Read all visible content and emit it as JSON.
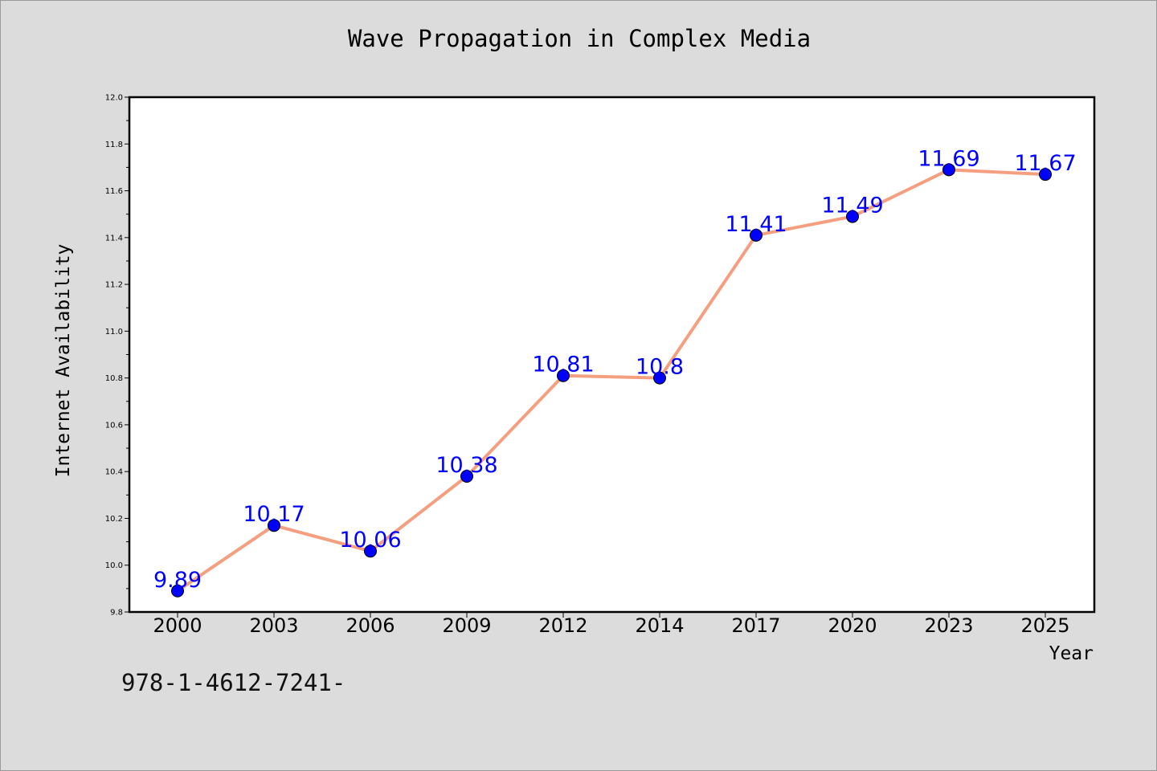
{
  "chart_data": {
    "type": "line",
    "title": "Wave Propagation in Complex Media",
    "xlabel": "Year",
    "ylabel": "Internet Availability",
    "categories": [
      "2000",
      "2003",
      "2006",
      "2009",
      "2012",
      "2014",
      "2017",
      "2020",
      "2023",
      "2025"
    ],
    "series": [
      {
        "values": [
          9.89,
          10.17,
          10.06,
          10.38,
          10.81,
          10.8,
          11.41,
          11.49,
          11.69,
          11.67
        ],
        "data_labels": [
          "9.89",
          "10.17",
          "10.06",
          "10.38",
          "10.81",
          "10.8",
          "11.41",
          "11.49",
          "11.69",
          "11.67"
        ]
      }
    ],
    "ylim": [
      9.8,
      12.0
    ],
    "yticks": [
      "9.8",
      "10.0",
      "10.2",
      "10.4",
      "10.6",
      "10.8",
      "11.0",
      "11.2",
      "11.4",
      "11.6",
      "11.8",
      "12.0"
    ],
    "grid": false,
    "legend": "none"
  },
  "footer_text": "978-1-4612-7241-",
  "colors": {
    "line": "#f4a080",
    "marker": "#0000ff",
    "data_label": "#0000ff",
    "background": "#dcdcdc",
    "plot_area": "#ffffff"
  }
}
